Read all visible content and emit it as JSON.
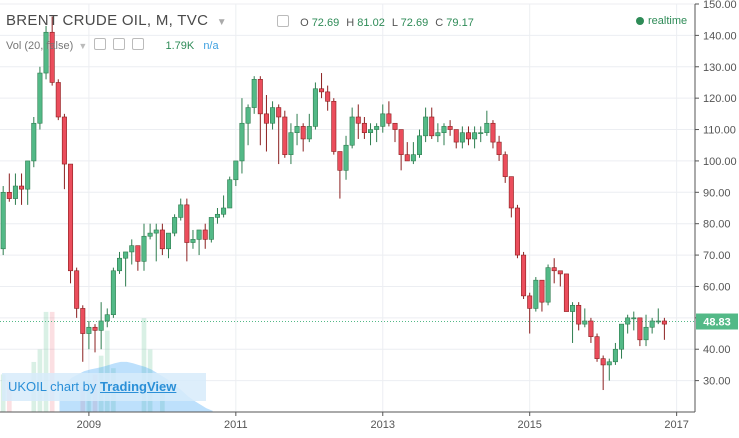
{
  "header": {
    "title": "BRENT CRUDE OIL, M, TVC",
    "ohlc": {
      "O_label": "O",
      "O": "72.69",
      "H_label": "H",
      "H": "81.02",
      "L_label": "L",
      "L": "72.69",
      "C_label": "C",
      "C": "79.17"
    },
    "volume_label": "Vol (20, false)",
    "volume_value": "1.79K",
    "volume_extra": "n/a",
    "realtime": "realtime"
  },
  "watermark": {
    "text": "UKOIL chart by",
    "brand": "TradingView"
  },
  "colors": {
    "up": "#53b987",
    "down": "#eb4d5c",
    "up_border": "#2e7d4f",
    "down_border": "#8b1f1f",
    "last": "#53b987",
    "grid": "#eceef2"
  },
  "chart_data": {
    "type": "candlestick",
    "ylim": [
      20,
      150
    ],
    "yticks": [
      30,
      40,
      50,
      60,
      70,
      80,
      90,
      100,
      110,
      120,
      130,
      140,
      150
    ],
    "x_labels": [
      "2009",
      "2011",
      "2013",
      "2015",
      "2017"
    ],
    "x_label_positions": [
      2009,
      2011,
      2013,
      2015,
      2017
    ],
    "xlim": [
      2007.79,
      2017.25
    ],
    "last_price": "48.83",
    "last_value": 48.83,
    "volume_label": "Vol (20, false)",
    "candles": [
      {
        "t": "2007-11",
        "o": 72,
        "h": 92,
        "l": 70,
        "c": 90
      },
      {
        "t": "2007-12",
        "o": 90,
        "h": 96,
        "l": 87,
        "c": 88
      },
      {
        "t": "2008-01",
        "o": 88,
        "h": 96,
        "l": 86,
        "c": 92
      },
      {
        "t": "2008-02",
        "o": 92,
        "h": 96,
        "l": 86,
        "c": 91
      },
      {
        "t": "2008-03",
        "o": 91,
        "h": 100,
        "l": 86,
        "c": 100
      },
      {
        "t": "2008-04",
        "o": 100,
        "h": 114,
        "l": 98,
        "c": 112
      },
      {
        "t": "2008-05",
        "o": 112,
        "h": 130,
        "l": 110,
        "c": 128
      },
      {
        "t": "2008-06",
        "o": 128,
        "h": 143,
        "l": 126,
        "c": 141
      },
      {
        "t": "2008-07",
        "o": 141,
        "h": 146,
        "l": 124,
        "c": 125
      },
      {
        "t": "2008-08",
        "o": 125,
        "h": 126,
        "l": 113,
        "c": 114
      },
      {
        "t": "2008-09",
        "o": 114,
        "h": 115,
        "l": 91,
        "c": 99
      },
      {
        "t": "2008-10",
        "o": 99,
        "h": 99,
        "l": 61,
        "c": 65
      },
      {
        "t": "2008-11",
        "o": 65,
        "h": 66,
        "l": 50,
        "c": 53
      },
      {
        "t": "2008-12",
        "o": 53,
        "h": 54,
        "l": 36,
        "c": 45
      },
      {
        "t": "2009-01",
        "o": 45,
        "h": 49,
        "l": 40,
        "c": 47
      },
      {
        "t": "2009-02",
        "o": 47,
        "h": 48,
        "l": 39,
        "c": 46
      },
      {
        "t": "2009-03",
        "o": 46,
        "h": 55,
        "l": 40,
        "c": 49
      },
      {
        "t": "2009-04",
        "o": 49,
        "h": 53,
        "l": 47,
        "c": 51
      },
      {
        "t": "2009-05",
        "o": 51,
        "h": 66,
        "l": 50,
        "c": 65
      },
      {
        "t": "2009-06",
        "o": 65,
        "h": 71,
        "l": 64,
        "c": 69
      },
      {
        "t": "2009-07",
        "o": 69,
        "h": 71,
        "l": 60,
        "c": 71
      },
      {
        "t": "2009-08",
        "o": 71,
        "h": 75,
        "l": 67,
        "c": 73
      },
      {
        "t": "2009-09",
        "o": 73,
        "h": 73,
        "l": 65,
        "c": 68
      },
      {
        "t": "2009-10",
        "o": 68,
        "h": 80,
        "l": 65,
        "c": 76
      },
      {
        "t": "2009-11",
        "o": 76,
        "h": 80,
        "l": 75,
        "c": 77
      },
      {
        "t": "2009-12",
        "o": 77,
        "h": 80,
        "l": 68,
        "c": 78
      },
      {
        "t": "2010-01",
        "o": 78,
        "h": 80,
        "l": 70,
        "c": 72
      },
      {
        "t": "2010-02",
        "o": 72,
        "h": 77,
        "l": 69,
        "c": 77
      },
      {
        "t": "2010-03",
        "o": 77,
        "h": 83,
        "l": 76,
        "c": 82
      },
      {
        "t": "2010-04",
        "o": 82,
        "h": 88,
        "l": 81,
        "c": 86
      },
      {
        "t": "2010-05",
        "o": 86,
        "h": 88,
        "l": 68,
        "c": 74
      },
      {
        "t": "2010-06",
        "o": 74,
        "h": 78,
        "l": 72,
        "c": 75
      },
      {
        "t": "2010-07",
        "o": 75,
        "h": 78,
        "l": 70,
        "c": 78
      },
      {
        "t": "2010-08",
        "o": 78,
        "h": 80,
        "l": 72,
        "c": 75
      },
      {
        "t": "2010-09",
        "o": 75,
        "h": 82,
        "l": 74,
        "c": 82
      },
      {
        "t": "2010-10",
        "o": 82,
        "h": 85,
        "l": 80,
        "c": 83
      },
      {
        "t": "2010-11",
        "o": 83,
        "h": 89,
        "l": 82,
        "c": 85
      },
      {
        "t": "2010-12",
        "o": 85,
        "h": 95,
        "l": 85,
        "c": 94
      },
      {
        "t": "2011-01",
        "o": 94,
        "h": 100,
        "l": 92,
        "c": 100
      },
      {
        "t": "2011-02",
        "o": 100,
        "h": 120,
        "l": 96,
        "c": 112
      },
      {
        "t": "2011-03",
        "o": 112,
        "h": 118,
        "l": 105,
        "c": 117
      },
      {
        "t": "2011-04",
        "o": 117,
        "h": 127,
        "l": 115,
        "c": 126
      },
      {
        "t": "2011-05",
        "o": 126,
        "h": 127,
        "l": 105,
        "c": 115
      },
      {
        "t": "2011-06",
        "o": 115,
        "h": 121,
        "l": 103,
        "c": 112
      },
      {
        "t": "2011-07",
        "o": 112,
        "h": 119,
        "l": 110,
        "c": 117
      },
      {
        "t": "2011-08",
        "o": 117,
        "h": 118,
        "l": 99,
        "c": 114
      },
      {
        "t": "2011-09",
        "o": 114,
        "h": 116,
        "l": 101,
        "c": 102
      },
      {
        "t": "2011-10",
        "o": 102,
        "h": 112,
        "l": 99,
        "c": 109
      },
      {
        "t": "2011-11",
        "o": 109,
        "h": 115,
        "l": 105,
        "c": 111
      },
      {
        "t": "2011-12",
        "o": 111,
        "h": 112,
        "l": 103,
        "c": 107
      },
      {
        "t": "2012-01",
        "o": 107,
        "h": 115,
        "l": 106,
        "c": 111
      },
      {
        "t": "2012-02",
        "o": 111,
        "h": 125,
        "l": 110,
        "c": 123
      },
      {
        "t": "2012-03",
        "o": 123,
        "h": 128,
        "l": 120,
        "c": 122
      },
      {
        "t": "2012-04",
        "o": 122,
        "h": 124,
        "l": 116,
        "c": 119
      },
      {
        "t": "2012-05",
        "o": 119,
        "h": 120,
        "l": 102,
        "c": 103
      },
      {
        "t": "2012-06",
        "o": 103,
        "h": 103,
        "l": 88,
        "c": 97
      },
      {
        "t": "2012-07",
        "o": 97,
        "h": 108,
        "l": 94,
        "c": 105
      },
      {
        "t": "2012-08",
        "o": 105,
        "h": 117,
        "l": 104,
        "c": 114
      },
      {
        "t": "2012-09",
        "o": 114,
        "h": 118,
        "l": 107,
        "c": 112
      },
      {
        "t": "2012-10",
        "o": 112,
        "h": 114,
        "l": 107,
        "c": 109
      },
      {
        "t": "2012-11",
        "o": 109,
        "h": 112,
        "l": 105,
        "c": 110
      },
      {
        "t": "2012-12",
        "o": 110,
        "h": 112,
        "l": 106,
        "c": 111
      },
      {
        "t": "2013-01",
        "o": 111,
        "h": 118,
        "l": 109,
        "c": 115
      },
      {
        "t": "2013-02",
        "o": 115,
        "h": 119,
        "l": 111,
        "c": 112
      },
      {
        "t": "2013-03",
        "o": 112,
        "h": 112,
        "l": 106,
        "c": 110
      },
      {
        "t": "2013-04",
        "o": 110,
        "h": 110,
        "l": 97,
        "c": 102
      },
      {
        "t": "2013-05",
        "o": 102,
        "h": 106,
        "l": 100,
        "c": 100
      },
      {
        "t": "2013-06",
        "o": 100,
        "h": 106,
        "l": 99,
        "c": 102
      },
      {
        "t": "2013-07",
        "o": 102,
        "h": 110,
        "l": 101,
        "c": 108
      },
      {
        "t": "2013-08",
        "o": 108,
        "h": 117,
        "l": 106,
        "c": 114
      },
      {
        "t": "2013-09",
        "o": 114,
        "h": 117,
        "l": 107,
        "c": 108
      },
      {
        "t": "2013-10",
        "o": 108,
        "h": 112,
        "l": 106,
        "c": 109
      },
      {
        "t": "2013-11",
        "o": 109,
        "h": 112,
        "l": 105,
        "c": 111
      },
      {
        "t": "2013-12",
        "o": 111,
        "h": 113,
        "l": 108,
        "c": 110
      },
      {
        "t": "2014-01",
        "o": 110,
        "h": 110,
        "l": 104,
        "c": 106
      },
      {
        "t": "2014-02",
        "o": 106,
        "h": 111,
        "l": 104,
        "c": 109
      },
      {
        "t": "2014-03",
        "o": 109,
        "h": 111,
        "l": 105,
        "c": 107
      },
      {
        "t": "2014-04",
        "o": 107,
        "h": 111,
        "l": 104,
        "c": 109
      },
      {
        "t": "2014-05",
        "o": 109,
        "h": 111,
        "l": 106,
        "c": 109
      },
      {
        "t": "2014-06",
        "o": 109,
        "h": 116,
        "l": 108,
        "c": 112
      },
      {
        "t": "2014-07",
        "o": 112,
        "h": 113,
        "l": 104,
        "c": 106
      },
      {
        "t": "2014-08",
        "o": 106,
        "h": 108,
        "l": 100,
        "c": 102
      },
      {
        "t": "2014-09",
        "o": 102,
        "h": 103,
        "l": 93,
        "c": 95
      },
      {
        "t": "2014-10",
        "o": 95,
        "h": 95,
        "l": 82,
        "c": 85
      },
      {
        "t": "2014-11",
        "o": 85,
        "h": 86,
        "l": 69,
        "c": 70
      },
      {
        "t": "2014-12",
        "o": 70,
        "h": 71,
        "l": 56,
        "c": 57
      },
      {
        "t": "2015-01",
        "o": 57,
        "h": 58,
        "l": 45,
        "c": 53
      },
      {
        "t": "2015-02",
        "o": 53,
        "h": 63,
        "l": 52,
        "c": 62
      },
      {
        "t": "2015-03",
        "o": 62,
        "h": 62,
        "l": 52,
        "c": 55
      },
      {
        "t": "2015-04",
        "o": 55,
        "h": 67,
        "l": 54,
        "c": 66
      },
      {
        "t": "2015-05",
        "o": 66,
        "h": 69,
        "l": 61,
        "c": 65
      },
      {
        "t": "2015-06",
        "o": 65,
        "h": 65,
        "l": 60,
        "c": 64
      },
      {
        "t": "2015-07",
        "o": 64,
        "h": 64,
        "l": 52,
        "c": 52
      },
      {
        "t": "2015-08",
        "o": 52,
        "h": 55,
        "l": 42,
        "c": 54
      },
      {
        "t": "2015-09",
        "o": 54,
        "h": 55,
        "l": 46,
        "c": 48
      },
      {
        "t": "2015-10",
        "o": 48,
        "h": 53,
        "l": 47,
        "c": 49
      },
      {
        "t": "2015-11",
        "o": 49,
        "h": 50,
        "l": 42,
        "c": 44
      },
      {
        "t": "2015-12",
        "o": 44,
        "h": 45,
        "l": 36,
        "c": 37
      },
      {
        "t": "2016-01",
        "o": 37,
        "h": 38,
        "l": 27,
        "c": 35
      },
      {
        "t": "2016-02",
        "o": 35,
        "h": 37,
        "l": 30,
        "c": 36
      },
      {
        "t": "2016-03",
        "o": 36,
        "h": 42,
        "l": 35,
        "c": 40
      },
      {
        "t": "2016-04",
        "o": 40,
        "h": 48,
        "l": 37,
        "c": 48
      },
      {
        "t": "2016-05",
        "o": 48,
        "h": 51,
        "l": 45,
        "c": 50
      },
      {
        "t": "2016-06",
        "o": 50,
        "h": 52,
        "l": 46,
        "c": 50
      },
      {
        "t": "2016-07",
        "o": 50,
        "h": 50,
        "l": 41,
        "c": 43
      },
      {
        "t": "2016-08",
        "o": 43,
        "h": 51,
        "l": 41,
        "c": 47
      },
      {
        "t": "2016-09",
        "o": 47,
        "h": 50,
        "l": 45,
        "c": 49
      },
      {
        "t": "2016-10",
        "o": 49,
        "h": 53,
        "l": 48,
        "c": 49
      },
      {
        "t": "2016-11",
        "o": 49,
        "h": 50,
        "l": 43,
        "c": 48
      }
    ],
    "volume": [
      {
        "t": "2007-11",
        "v": 0.6,
        "dir": "up"
      },
      {
        "t": "2007-12",
        "v": 0.5,
        "dir": "down"
      },
      {
        "t": "2008-04",
        "v": 0.8,
        "dir": "up"
      },
      {
        "t": "2008-05",
        "v": 1.0,
        "dir": "up"
      },
      {
        "t": "2008-06",
        "v": 1.6,
        "dir": "up"
      },
      {
        "t": "2008-07",
        "v": 1.6,
        "dir": "down"
      },
      {
        "t": "2008-12",
        "v": 0.4,
        "dir": "down"
      },
      {
        "t": "2009-01",
        "v": 0.5,
        "dir": "up"
      },
      {
        "t": "2009-02",
        "v": 0.6,
        "dir": "down"
      },
      {
        "t": "2009-03",
        "v": 0.9,
        "dir": "up"
      },
      {
        "t": "2009-04",
        "v": 1.3,
        "dir": "up"
      },
      {
        "t": "2009-05",
        "v": 0.7,
        "dir": "up"
      },
      {
        "t": "2009-10",
        "v": 1.5,
        "dir": "up"
      },
      {
        "t": "2009-11",
        "v": 1.0,
        "dir": "up"
      },
      {
        "t": "2010-01",
        "v": 0.5,
        "dir": "up"
      }
    ],
    "volume_max": 1.79,
    "volume_ma": [
      0.3,
      0.45,
      0.55,
      0.6,
      0.65,
      0.68,
      0.7,
      0.72,
      0.75,
      0.78,
      0.8,
      0.8,
      0.78,
      0.75,
      0.72,
      0.68,
      0.62,
      0.56,
      0.5,
      0.42,
      0.34,
      0.25,
      0.18,
      0.12,
      0.06,
      0.02
    ]
  }
}
